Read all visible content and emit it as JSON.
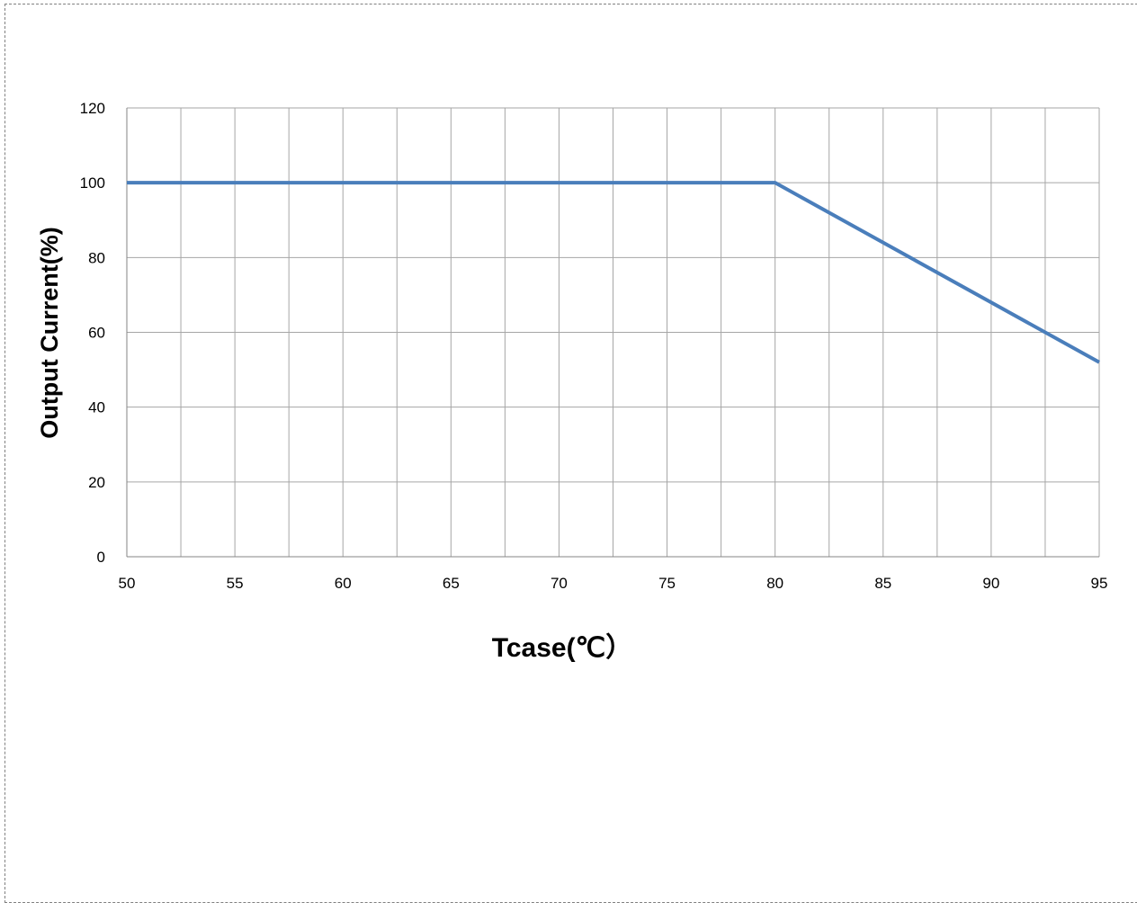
{
  "chart_data": {
    "type": "line",
    "title": "",
    "xlabel": "Tcase(℃）",
    "ylabel": "Output Current(%)",
    "xlim": [
      50,
      95
    ],
    "ylim": [
      0,
      120
    ],
    "x_ticks": [
      "50",
      "55",
      "60",
      "65",
      "70",
      "75",
      "80",
      "85",
      "90",
      "95"
    ],
    "y_ticks": [
      "0",
      "20",
      "40",
      "60",
      "80",
      "100",
      "120"
    ],
    "grid": true,
    "legend": "none",
    "series": [
      {
        "x": [
          50,
          80,
          95
        ],
        "y": [
          100,
          100,
          52
        ],
        "color": "#4a7ebb"
      }
    ]
  }
}
